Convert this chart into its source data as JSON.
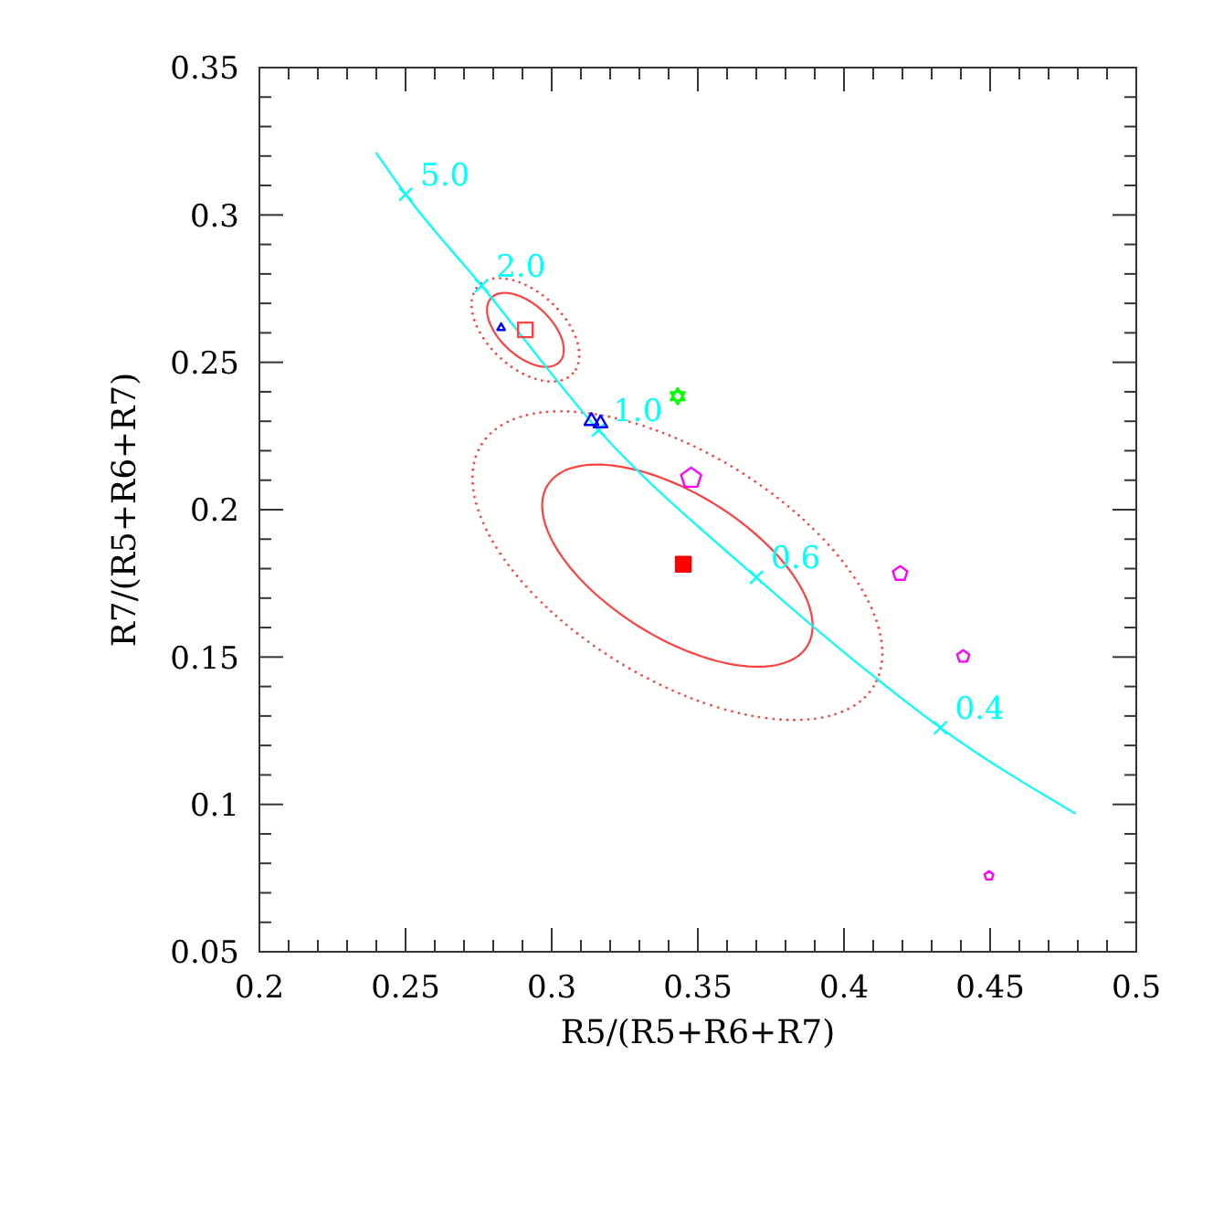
{
  "chart_data": {
    "type": "scatter",
    "xlabel": "R5/(R5+R6+R7)",
    "ylabel": "R7/(R5+R6+R7)",
    "xlim": [
      0.2,
      0.5
    ],
    "ylim": [
      0.05,
      0.35
    ],
    "xticks": [
      0.2,
      {
        "value": 0.21,
        "label": null
      },
      {
        "value": 0.22,
        "label": null
      },
      {
        "value": 0.23,
        "label": null
      },
      {
        "value": 0.24,
        "label": null
      },
      0.25,
      {
        "value": 0.26,
        "label": null
      },
      {
        "value": 0.27,
        "label": null
      },
      {
        "value": 0.28,
        "label": null
      },
      {
        "value": 0.29,
        "label": null
      },
      0.3,
      {
        "value": 0.31,
        "label": null
      },
      {
        "value": 0.32,
        "label": null
      },
      {
        "value": 0.33,
        "label": null
      },
      {
        "value": 0.34,
        "label": null
      },
      0.35,
      {
        "value": 0.36,
        "label": null
      },
      {
        "value": 0.37,
        "label": null
      },
      {
        "value": 0.38,
        "label": null
      },
      {
        "value": 0.39,
        "label": null
      },
      0.4,
      {
        "value": 0.41,
        "label": null
      },
      {
        "value": 0.42,
        "label": null
      },
      {
        "value": 0.43,
        "label": null
      },
      {
        "value": 0.44,
        "label": null
      },
      0.45,
      {
        "value": 0.46,
        "label": null
      },
      {
        "value": 0.47,
        "label": null
      },
      {
        "value": 0.48,
        "label": null
      },
      {
        "value": 0.49,
        "label": null
      },
      0.5
    ],
    "yticks": [
      0.05,
      {
        "value": 0.06,
        "label": null
      },
      {
        "value": 0.07,
        "label": null
      },
      {
        "value": 0.08,
        "label": null
      },
      {
        "value": 0.09,
        "label": null
      },
      0.1,
      {
        "value": 0.11,
        "label": null
      },
      {
        "value": 0.12,
        "label": null
      },
      {
        "value": 0.13,
        "label": null
      },
      {
        "value": 0.14,
        "label": null
      },
      0.15,
      {
        "value": 0.16,
        "label": null
      },
      {
        "value": 0.17,
        "label": null
      },
      {
        "value": 0.18,
        "label": null
      },
      {
        "value": 0.19,
        "label": null
      },
      0.2,
      {
        "value": 0.21,
        "label": null
      },
      {
        "value": 0.22,
        "label": null
      },
      {
        "value": 0.23,
        "label": null
      },
      {
        "value": 0.24,
        "label": null
      },
      0.25,
      {
        "value": 0.26,
        "label": null
      },
      {
        "value": 0.27,
        "label": null
      },
      {
        "value": 0.28,
        "label": null
      },
      {
        "value": 0.29,
        "label": null
      },
      0.3,
      {
        "value": 0.31,
        "label": null
      },
      {
        "value": 0.32,
        "label": null
      },
      {
        "value": 0.33,
        "label": null
      },
      {
        "value": 0.34,
        "label": null
      },
      0.35
    ],
    "series": [
      {
        "type": "line",
        "color": "#00ffff",
        "line_style": "solid",
        "x": [
          0.24,
          0.25,
          0.276,
          0.316,
          0.37,
          0.412,
          0.433,
          0.479
        ],
        "values": [
          0.321,
          0.307,
          0.276,
          0.227,
          0.177,
          0.142,
          0.126,
          0.097
        ]
      },
      {
        "color": "#00ffff",
        "marker": "cross",
        "x": [
          0.25,
          0.276,
          0.316,
          0.37,
          0.433
        ],
        "values": [
          0.307,
          0.276,
          0.227,
          0.177,
          0.126
        ]
      },
      {
        "color": "#ff0000",
        "marker": "square",
        "x": [
          0.345
        ],
        "values": [
          0.1815
        ]
      },
      {
        "color": "#ff4040",
        "marker": "square-open",
        "x": [
          0.291
        ],
        "values": [
          0.261
        ]
      },
      {
        "type": "bubble",
        "color": "#0000ff",
        "marker": "triangle-open",
        "x": [
          0.2827,
          0.3136,
          0.3167
        ],
        "values": [
          0.2617,
          0.2301,
          0.2293
        ],
        "sizes": [
          0.13,
          0.42,
          0.42
        ]
      },
      {
        "type": "bubble",
        "color": "#ff00ff",
        "x": [
          0.3477,
          0.4192,
          0.4408,
          0.4496
        ],
        "values": [
          0.2107,
          0.1783,
          0.1502,
          0.0758
        ],
        "sizes": [
          1,
          0.52,
          0.36,
          0.19
        ]
      },
      {
        "color": "#00ff00",
        "marker": "star-open",
        "x": [
          0.3431
        ],
        "values": [
          0.2385
        ]
      }
    ],
    "annotations": [
      {
        "text": "5.0",
        "x": 0.25,
        "y": 0.307
      },
      {
        "text": "2.0",
        "x": 0.276,
        "y": 0.276
      },
      {
        "text": "1.0",
        "x": 0.316,
        "y": 0.227
      },
      {
        "text": "0.6",
        "x": 0.37,
        "y": 0.177
      },
      {
        "text": "0.4",
        "x": 0.433,
        "y": 0.126
      }
    ]
  }
}
